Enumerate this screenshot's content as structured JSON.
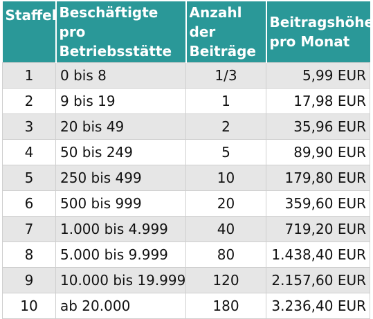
{
  "table": {
    "headers": {
      "staffel": "Staffel",
      "beschaeftigte_line1": "Beschäftigte pro",
      "beschaeftigte_line2": "Betriebsstätte",
      "anzahl_line1": "Anzahl der",
      "anzahl_line2": "Beiträge",
      "beitrag_line1": "Beitragshöhe",
      "beitrag_line2": "pro Monat"
    },
    "rows": [
      {
        "staffel": "1",
        "beschaeftigte": "0 bis 8",
        "anzahl": "1/3",
        "beitrag": "5,99 EUR"
      },
      {
        "staffel": "2",
        "beschaeftigte": "9 bis 19",
        "anzahl": "1",
        "beitrag": "17,98 EUR"
      },
      {
        "staffel": "3",
        "beschaeftigte": "20 bis 49",
        "anzahl": "2",
        "beitrag": "35,96 EUR"
      },
      {
        "staffel": "4",
        "beschaeftigte": "50 bis 249",
        "anzahl": "5",
        "beitrag": "89,90 EUR"
      },
      {
        "staffel": "5",
        "beschaeftigte": "250 bis 499",
        "anzahl": "10",
        "beitrag": "179,80 EUR"
      },
      {
        "staffel": "6",
        "beschaeftigte": "500 bis 999",
        "anzahl": "20",
        "beitrag": "359,60 EUR"
      },
      {
        "staffel": "7",
        "beschaeftigte": "1.000 bis 4.999",
        "anzahl": "40",
        "beitrag": "719,20 EUR"
      },
      {
        "staffel": "8",
        "beschaeftigte": "5.000 bis 9.999",
        "anzahl": "80",
        "beitrag": "1.438,40 EUR"
      },
      {
        "staffel": "9",
        "beschaeftigte": "10.000 bis 19.999",
        "anzahl": "120",
        "beitrag": "2.157,60 EUR"
      },
      {
        "staffel": "10",
        "beschaeftigte": "ab 20.000",
        "anzahl": "180",
        "beitrag": "3.236,40 EUR"
      }
    ]
  },
  "colors": {
    "header_bg": "#2a9898",
    "header_text": "#ffffff",
    "row_odd_bg": "#e6e6e6",
    "row_even_bg": "#ffffff",
    "border": "#cfcfcf"
  }
}
